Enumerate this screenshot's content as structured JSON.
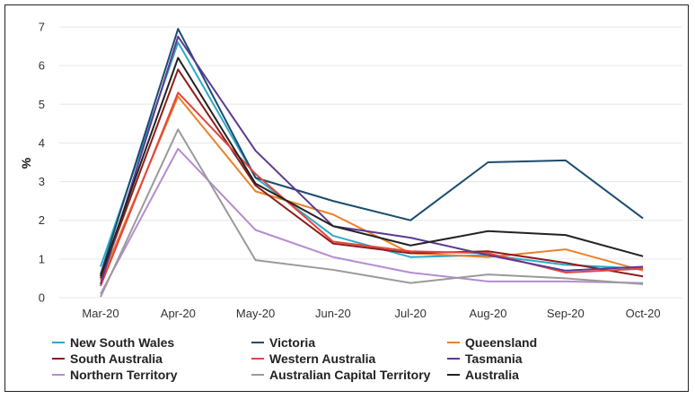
{
  "chart_data": {
    "type": "line",
    "ylabel": "%",
    "ylim": [
      0,
      7
    ],
    "yticks": [
      "0",
      "1",
      "2",
      "3",
      "4",
      "5",
      "6",
      "7"
    ],
    "categories": [
      "Mar-20",
      "Apr-20",
      "May-20",
      "Jun-20",
      "Jul-20",
      "Aug-20",
      "Sep-20",
      "Oct-20"
    ],
    "grid": true,
    "legend_position": "bottom",
    "series": [
      {
        "name": "New South Wales",
        "color": "#2ea8c8",
        "values": [
          0.8,
          6.6,
          3.1,
          1.6,
          1.05,
          1.1,
          0.85,
          0.75
        ]
      },
      {
        "name": "Victoria",
        "color": "#1a4c6e",
        "values": [
          0.6,
          6.95,
          3.1,
          2.5,
          2.0,
          3.5,
          3.55,
          2.05
        ]
      },
      {
        "name": "Queensland",
        "color": "#e8822a",
        "values": [
          0.45,
          5.2,
          2.75,
          2.15,
          1.15,
          1.05,
          1.25,
          0.7
        ]
      },
      {
        "name": "South Australia",
        "color": "#8c1c1c",
        "values": [
          0.5,
          5.9,
          2.9,
          1.4,
          1.15,
          1.2,
          0.9,
          0.55
        ]
      },
      {
        "name": "Western Australia",
        "color": "#e2463c",
        "values": [
          0.3,
          5.3,
          3.2,
          1.45,
          1.2,
          1.15,
          0.65,
          0.75
        ]
      },
      {
        "name": "Tasmania",
        "color": "#5b3a91",
        "values": [
          0.35,
          6.75,
          3.8,
          1.85,
          1.55,
          1.1,
          0.7,
          0.8
        ]
      },
      {
        "name": "Northern Territory",
        "color": "#b48cd2",
        "values": [
          0.1,
          3.85,
          1.75,
          1.05,
          0.65,
          0.42,
          0.42,
          0.38
        ]
      },
      {
        "name": "Australian Capital Territory",
        "color": "#9a9a9a",
        "values": [
          0.02,
          4.35,
          0.97,
          0.72,
          0.38,
          0.6,
          0.5,
          0.35
        ]
      },
      {
        "name": "Australia",
        "color": "#222222",
        "values": [
          0.55,
          6.2,
          2.95,
          1.85,
          1.35,
          1.72,
          1.62,
          1.07
        ]
      }
    ]
  }
}
